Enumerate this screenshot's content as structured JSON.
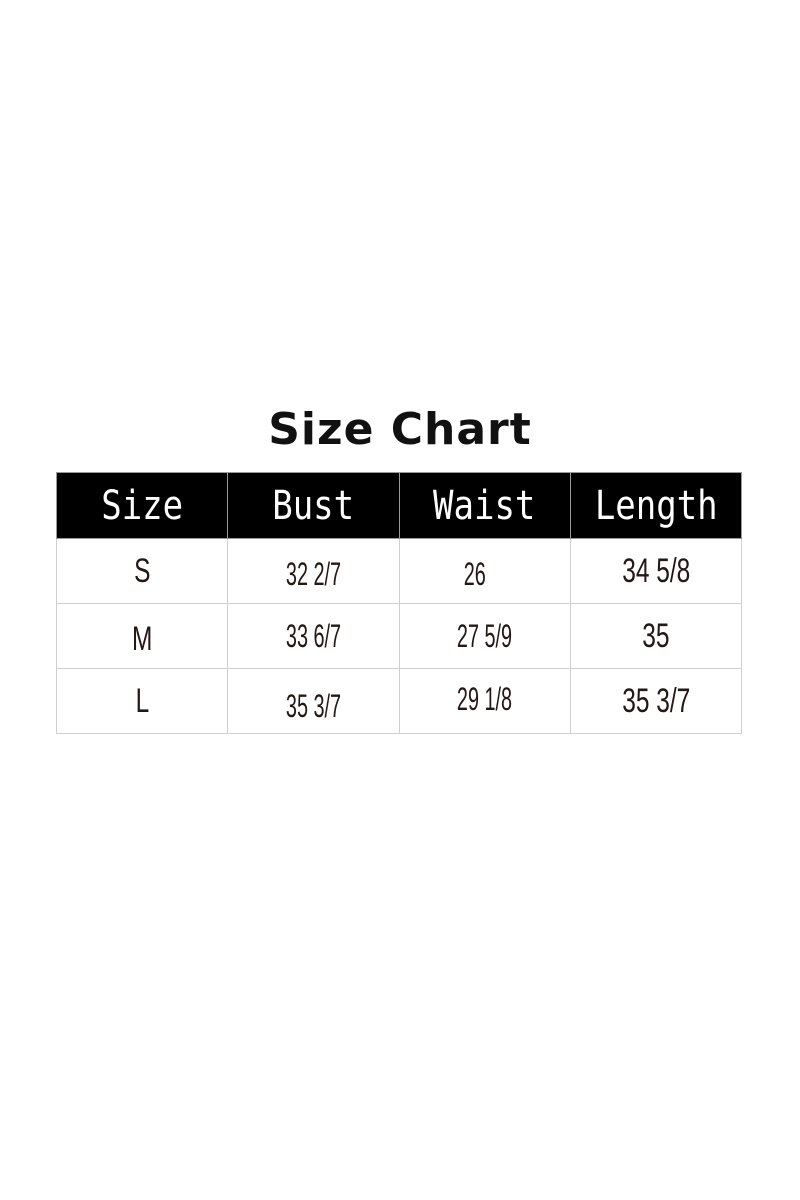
{
  "title": "Size Chart",
  "table": {
    "headers": [
      "Size",
      "Bust",
      "Waist",
      "Length"
    ],
    "rows": [
      [
        "S",
        "32 2/7",
        "26",
        "34 5/8"
      ],
      [
        "M",
        "33 6/7",
        "27 5/9",
        "35"
      ],
      [
        "L",
        "35 3/7",
        "29 1/8",
        "35 3/7"
      ]
    ]
  },
  "colors": {
    "header_bg": "#000000",
    "header_text": "#ffffff",
    "cell_text": "#231815",
    "border": "#cfcfcf"
  }
}
